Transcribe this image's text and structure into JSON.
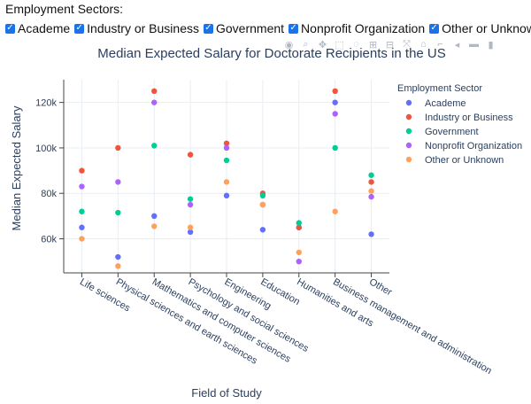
{
  "filters": {
    "title": "Employment Sectors:",
    "options": [
      {
        "label": "Academe",
        "checked": true
      },
      {
        "label": "Industry or Business",
        "checked": true
      },
      {
        "label": "Government",
        "checked": true
      },
      {
        "label": "Nonprofit Organization",
        "checked": true
      },
      {
        "label": "Other or Unknown",
        "checked": true
      }
    ]
  },
  "modebar": {
    "icons": [
      "camera-icon",
      "zoom-icon",
      "pan-icon",
      "box-select-icon",
      "lasso-icon",
      "zoom-in-icon",
      "zoom-out-icon",
      "autoscale-icon",
      "reset-axes-icon",
      "spike-lines-icon",
      "compare-icon",
      "closest-icon",
      "plotly-logo-icon"
    ]
  },
  "chart_data": {
    "type": "scatter",
    "title": "Median Expected Salary for Doctorate Recipients in the US",
    "xlabel": "Field of Study",
    "ylabel": "Median Expected Salary",
    "ylim": [
      45000,
      130000
    ],
    "yticks": [
      60000,
      80000,
      100000,
      120000
    ],
    "ytick_labels": [
      "60k",
      "80k",
      "100k",
      "120k"
    ],
    "grid": true,
    "legend_title": "Employment Sector",
    "legend_position": "right",
    "categories": [
      "Life sciences",
      "Physical sciences and earth sciences",
      "Mathematics and computer sciences",
      "Psychology and social sciences",
      "Engineering",
      "Education",
      "Humanities and arts",
      "Business management and administration",
      "Other"
    ],
    "series": [
      {
        "name": "Academe",
        "color": "#636efa",
        "values": [
          65000,
          52000,
          70000,
          63000,
          79000,
          64000,
          65000,
          120000,
          62000
        ]
      },
      {
        "name": "Industry or Business",
        "color": "#ef553b",
        "values": [
          90000,
          100000,
          125000,
          97000,
          102000,
          80000,
          65000,
          125000,
          85000
        ]
      },
      {
        "name": "Government",
        "color": "#00cc96",
        "values": [
          72000,
          71500,
          101000,
          77500,
          94500,
          79000,
          67000,
          100000,
          88000
        ]
      },
      {
        "name": "Nonprofit Organization",
        "color": "#ab63fa",
        "values": [
          83000,
          85000,
          120000,
          75000,
          100000,
          75000,
          50000,
          115000,
          78500
        ]
      },
      {
        "name": "Other or Unknown",
        "color": "#ffa15a",
        "values": [
          60000,
          48000,
          65500,
          65000,
          85000,
          75000,
          54000,
          72000,
          81000
        ]
      }
    ]
  }
}
